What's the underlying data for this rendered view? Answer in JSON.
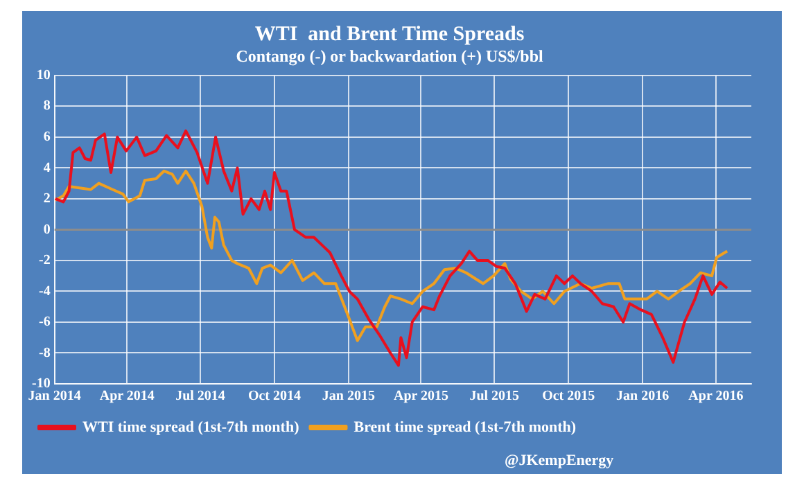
{
  "chart_data": {
    "type": "line",
    "title": "WTI  and Brent Time Spreads",
    "subtitle": "Contango (-) or backwardation (+) US$/bbl",
    "xlim": [
      "2014-01-01",
      "2016-05-15"
    ],
    "xticks": [
      {
        "value": "2014-01-01",
        "label": "Jan 2014"
      },
      {
        "value": "2014-04-01",
        "label": "Apr 2014"
      },
      {
        "value": "2014-07-01",
        "label": "Jul 2014"
      },
      {
        "value": "2014-10-01",
        "label": "Oct 2014"
      },
      {
        "value": "2015-01-01",
        "label": "Jan 2015"
      },
      {
        "value": "2015-04-01",
        "label": "Apr 2015"
      },
      {
        "value": "2015-07-01",
        "label": "Jul 2015"
      },
      {
        "value": "2015-10-01",
        "label": "Oct 2015"
      },
      {
        "value": "2016-01-01",
        "label": "Jan 2016"
      },
      {
        "value": "2016-04-01",
        "label": "Apr 2016"
      }
    ],
    "ylim": [
      -10,
      10
    ],
    "yticks": [
      -10,
      -8,
      -6,
      -4,
      -2,
      0,
      2,
      4,
      6,
      8,
      10
    ],
    "grid": true,
    "legend": "bottom left",
    "marker": "none",
    "line_style": "solid",
    "ref_lines": [
      {
        "axis": "y",
        "value": 0,
        "color": "#8c8c8c"
      }
    ],
    "annotations": [
      "@JKempEnergy"
    ],
    "series": [
      {
        "name": "WTI time spread (1st-7th month)",
        "color": "#e8101e",
        "x": [
          "2014-01-02",
          "2014-01-12",
          "2014-01-19",
          "2014-01-24",
          "2014-02-01",
          "2014-02-08",
          "2014-02-15",
          "2014-02-21",
          "2014-03-04",
          "2014-03-12",
          "2014-03-20",
          "2014-03-31",
          "2014-04-13",
          "2014-04-23",
          "2014-05-07",
          "2014-05-20",
          "2014-06-03",
          "2014-06-13",
          "2014-06-27",
          "2014-07-10",
          "2014-07-20",
          "2014-07-30",
          "2014-08-09",
          "2014-08-16",
          "2014-08-23",
          "2014-09-02",
          "2014-09-12",
          "2014-09-19",
          "2014-09-26",
          "2014-10-01",
          "2014-10-09",
          "2014-10-16",
          "2014-10-26",
          "2014-11-09",
          "2014-11-19",
          "2014-11-29",
          "2014-12-09",
          "2014-12-23",
          "2015-01-02",
          "2015-01-12",
          "2015-01-26",
          "2015-02-08",
          "2015-02-22",
          "2015-03-04",
          "2015-03-07",
          "2015-03-14",
          "2015-03-21",
          "2015-04-03",
          "2015-04-17",
          "2015-04-24",
          "2015-05-07",
          "2015-05-21",
          "2015-05-31",
          "2015-06-10",
          "2015-06-23",
          "2015-07-04",
          "2015-07-14",
          "2015-07-27",
          "2015-08-10",
          "2015-08-20",
          "2015-09-02",
          "2015-09-16",
          "2015-09-26",
          "2015-10-06",
          "2015-10-16",
          "2015-10-30",
          "2015-11-12",
          "2015-11-26",
          "2015-12-08",
          "2015-12-16",
          "2015-12-30",
          "2016-01-12",
          "2016-01-26",
          "2016-02-08",
          "2016-02-22",
          "2016-03-06",
          "2016-03-16",
          "2016-03-27",
          "2016-04-06",
          "2016-04-15"
        ],
        "values": [
          2.0,
          1.8,
          2.5,
          5.0,
          5.3,
          4.6,
          4.5,
          5.8,
          6.2,
          3.7,
          6.0,
          5.1,
          6.0,
          4.8,
          5.1,
          6.1,
          5.3,
          6.4,
          5.0,
          3.0,
          6.0,
          3.8,
          2.5,
          4.0,
          1.0,
          2.0,
          1.3,
          2.5,
          1.3,
          3.7,
          2.5,
          2.5,
          0.0,
          -0.5,
          -0.5,
          -1.0,
          -1.5,
          -3.0,
          -4.0,
          -4.5,
          -5.8,
          -6.8,
          -8.0,
          -8.8,
          -7.0,
          -8.3,
          -6.0,
          -5.0,
          -5.2,
          -4.3,
          -3.0,
          -2.2,
          -1.4,
          -2.0,
          -2.0,
          -2.4,
          -2.5,
          -3.5,
          -5.3,
          -4.2,
          -4.5,
          -3.0,
          -3.5,
          -3.0,
          -3.5,
          -4.0,
          -4.8,
          -5.0,
          -6.0,
          -4.8,
          -5.2,
          -5.5,
          -7.0,
          -8.6,
          -6.0,
          -4.5,
          -3.0,
          -4.2,
          -3.4,
          -3.8
        ]
      },
      {
        "name": "Brent time spread (1st-7th month)",
        "color": "#f0a020",
        "x": [
          "2014-01-02",
          "2014-01-12",
          "2014-01-19",
          "2014-02-01",
          "2014-02-15",
          "2014-02-25",
          "2014-03-14",
          "2014-03-27",
          "2014-04-03",
          "2014-04-17",
          "2014-04-23",
          "2014-05-07",
          "2014-05-17",
          "2014-05-27",
          "2014-06-03",
          "2014-06-13",
          "2014-06-23",
          "2014-07-03",
          "2014-07-10",
          "2014-07-15",
          "2014-07-19",
          "2014-07-24",
          "2014-07-30",
          "2014-08-09",
          "2014-08-16",
          "2014-08-30",
          "2014-09-09",
          "2014-09-16",
          "2014-09-26",
          "2014-10-09",
          "2014-10-23",
          "2014-11-05",
          "2014-11-19",
          "2014-12-02",
          "2014-12-16",
          "2015-01-02",
          "2015-01-12",
          "2015-01-22",
          "2015-02-05",
          "2015-02-15",
          "2015-02-22",
          "2015-03-07",
          "2015-03-21",
          "2015-04-03",
          "2015-04-17",
          "2015-04-30",
          "2015-05-14",
          "2015-05-27",
          "2015-06-17",
          "2015-06-30",
          "2015-07-14",
          "2015-07-21",
          "2015-08-03",
          "2015-08-17",
          "2015-08-30",
          "2015-09-13",
          "2015-09-26",
          "2015-10-16",
          "2015-10-30",
          "2015-11-19",
          "2015-12-03",
          "2015-12-10",
          "2015-12-23",
          "2016-01-06",
          "2016-01-19",
          "2016-02-02",
          "2016-02-15",
          "2016-02-29",
          "2016-03-13",
          "2016-03-27",
          "2016-04-02",
          "2016-04-15"
        ],
        "values": [
          1.9,
          2.2,
          2.8,
          2.7,
          2.6,
          3.0,
          2.6,
          2.3,
          1.8,
          2.2,
          3.2,
          3.3,
          3.8,
          3.6,
          3.0,
          3.8,
          3.0,
          1.5,
          -0.5,
          -1.2,
          0.8,
          0.5,
          -1.0,
          -2.0,
          -2.2,
          -2.5,
          -3.5,
          -2.5,
          -2.3,
          -2.8,
          -2.0,
          -3.3,
          -2.8,
          -3.5,
          -3.5,
          -5.8,
          -7.2,
          -6.3,
          -6.3,
          -5.0,
          -4.3,
          -4.5,
          -4.8,
          -4.0,
          -3.5,
          -2.6,
          -2.5,
          -2.8,
          -3.5,
          -3.0,
          -2.2,
          -3.2,
          -4.0,
          -4.5,
          -4.0,
          -4.8,
          -4.0,
          -3.5,
          -3.8,
          -3.5,
          -3.5,
          -4.5,
          -4.5,
          -4.5,
          -4.0,
          -4.5,
          -4.0,
          -3.5,
          -2.8,
          -3.0,
          -1.8,
          -1.4
        ]
      }
    ]
  }
}
